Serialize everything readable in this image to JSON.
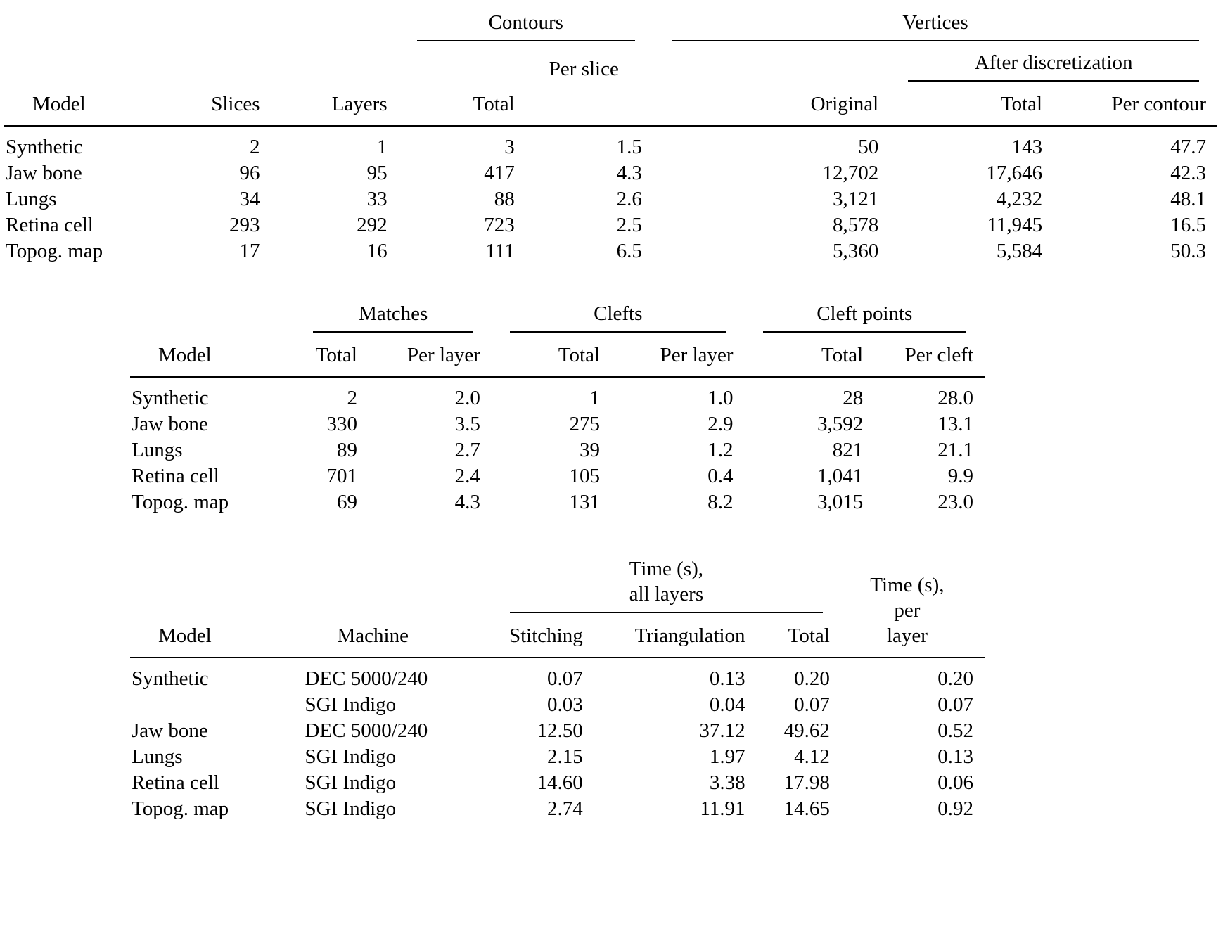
{
  "table1": {
    "groups": {
      "contours": "Contours",
      "vertices": "Vertices"
    },
    "subheaders": {
      "per_slice": "Per slice",
      "after_discretization": "After discretization"
    },
    "columns": {
      "model": "Model",
      "slices": "Slices",
      "layers": "Layers",
      "contours_total": "Total",
      "original": "Original",
      "vertices_total": "Total",
      "per_contour": "Per contour"
    },
    "rows": [
      [
        "Synthetic",
        "2",
        "1",
        "3",
        "1.5",
        "50",
        "143",
        "47.7"
      ],
      [
        "Jaw bone",
        "96",
        "95",
        "417",
        "4.3",
        "12,702",
        "17,646",
        "42.3"
      ],
      [
        "Lungs",
        "34",
        "33",
        "88",
        "2.6",
        "3,121",
        "4,232",
        "48.1"
      ],
      [
        "Retina cell",
        "293",
        "292",
        "723",
        "2.5",
        "8,578",
        "11,945",
        "16.5"
      ],
      [
        "Topog. map",
        "17",
        "16",
        "111",
        "6.5",
        "5,360",
        "5,584",
        "50.3"
      ]
    ]
  },
  "table2": {
    "groups": {
      "matches": "Matches",
      "clefts": "Clefts",
      "cleft_points": "Cleft points"
    },
    "columns": {
      "model": "Model",
      "matches_total": "Total",
      "matches_per_layer": "Per layer",
      "clefts_total": "Total",
      "clefts_per_layer": "Per layer",
      "cleft_points_total": "Total",
      "per_cleft": "Per cleft"
    },
    "rows": [
      [
        "Synthetic",
        "2",
        "2.0",
        "1",
        "1.0",
        "28",
        "28.0"
      ],
      [
        "Jaw bone",
        "330",
        "3.5",
        "275",
        "2.9",
        "3,592",
        "13.1"
      ],
      [
        "Lungs",
        "89",
        "2.7",
        "39",
        "1.2",
        "821",
        "21.1"
      ],
      [
        "Retina cell",
        "701",
        "2.4",
        "105",
        "0.4",
        "1,041",
        "9.9"
      ],
      [
        "Topog. map",
        "69",
        "4.3",
        "131",
        "8.2",
        "3,015",
        "23.0"
      ]
    ]
  },
  "table3": {
    "groups": {
      "time_all_line1": "Time (s),",
      "time_all_line2": "all layers"
    },
    "time_per": {
      "line1": "Time (s),",
      "line2": "per",
      "line3": "layer"
    },
    "columns": {
      "model": "Model",
      "machine": "Machine",
      "stitching": "Stitching",
      "triangulation": "Triangulation",
      "total": "Total"
    },
    "rows": [
      [
        "Synthetic",
        "DEC 5000/240",
        "0.07",
        "0.13",
        "0.20",
        "0.20"
      ],
      [
        "",
        "SGI Indigo",
        "0.03",
        "0.04",
        "0.07",
        "0.07"
      ],
      [
        "Jaw bone",
        "DEC 5000/240",
        "12.50",
        "37.12",
        "49.62",
        "0.52"
      ],
      [
        "Lungs",
        "SGI Indigo",
        "2.15",
        "1.97",
        "4.12",
        "0.13"
      ],
      [
        "Retina cell",
        "SGI Indigo",
        "14.60",
        "3.38",
        "17.98",
        "0.06"
      ],
      [
        "Topog. map",
        "SGI Indigo",
        "2.74",
        "11.91",
        "14.65",
        "0.92"
      ]
    ]
  }
}
